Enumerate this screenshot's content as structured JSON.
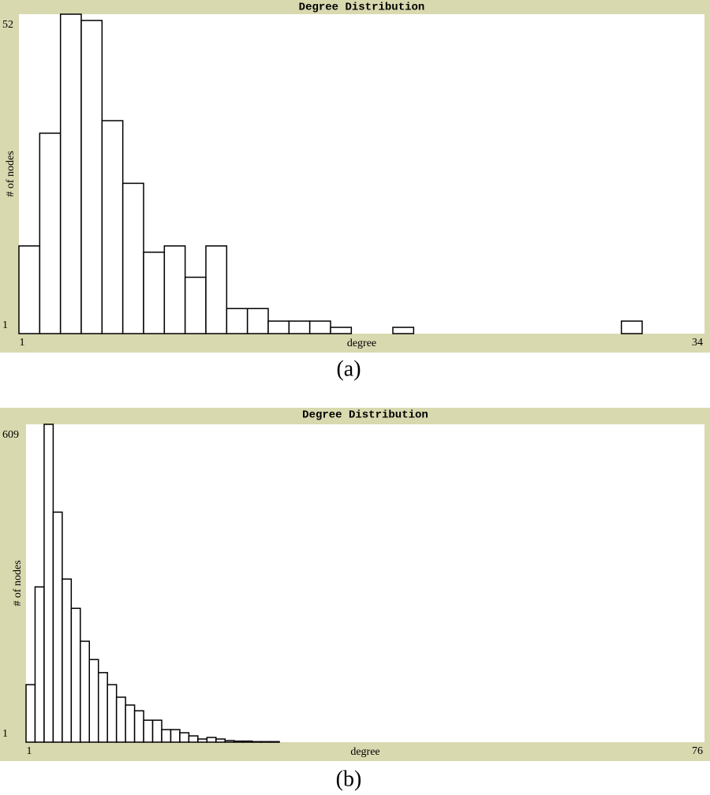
{
  "chart_data": [
    {
      "type": "histogram",
      "title": "Degree Distribution",
      "x_label": "degree",
      "y_label": "# of nodes",
      "caption": "(a)",
      "bins": [
        1,
        2,
        3,
        4,
        5,
        6,
        7,
        8,
        9,
        10,
        11,
        12,
        13,
        14,
        15,
        16,
        17,
        18,
        19,
        20,
        21,
        22,
        23,
        24,
        25,
        26,
        27,
        28,
        29,
        30,
        31,
        32,
        33,
        34
      ],
      "values": [
        15,
        33,
        52,
        51,
        35,
        25,
        14,
        15,
        10,
        15,
        5,
        5,
        3,
        3,
        3,
        2,
        0,
        0,
        2,
        0,
        0,
        1,
        0,
        1,
        1,
        0,
        0,
        0,
        0,
        3,
        0,
        0,
        1
      ],
      "xlim": [
        1,
        34
      ],
      "xticks": [
        1,
        34
      ],
      "ylim": [
        1,
        52
      ],
      "yticks": [
        1,
        52
      ],
      "color": "#ffffff"
    },
    {
      "type": "histogram",
      "title": "Degree Distribution",
      "x_label": "degree",
      "y_label": "# of nodes",
      "caption": "(b)",
      "bins": [
        1,
        2,
        3,
        4,
        5,
        6,
        7,
        8,
        9,
        10,
        11,
        12,
        13,
        14,
        15,
        16,
        17,
        18,
        19,
        20,
        21,
        22,
        23,
        24,
        25,
        26,
        27,
        28,
        29,
        30,
        31,
        32,
        33,
        34,
        35,
        36,
        37,
        38,
        39,
        40,
        41,
        42,
        43,
        44,
        45,
        46,
        47,
        48,
        49,
        50,
        51,
        52,
        53,
        54,
        55,
        56,
        57,
        58,
        59,
        60,
        61,
        62,
        63,
        64,
        65,
        66,
        67,
        68,
        69,
        70,
        71,
        72,
        73,
        74,
        75,
        76
      ],
      "values": [
        111,
        298,
        609,
        441,
        313,
        257,
        194,
        159,
        134,
        111,
        87,
        72,
        61,
        43,
        43,
        25,
        25,
        19,
        13,
        7,
        10,
        7,
        4,
        3,
        3,
        2,
        2,
        2,
        0,
        0,
        0,
        0,
        0,
        0,
        1,
        0,
        0,
        0,
        0,
        0,
        1,
        0,
        0,
        0,
        1,
        0,
        0,
        0,
        0,
        0,
        1,
        1,
        0,
        0,
        1,
        0,
        0,
        0,
        0,
        0,
        1,
        0,
        0,
        0,
        0,
        0,
        0,
        0,
        0,
        0,
        0,
        0,
        0,
        0,
        1
      ],
      "xlim": [
        1,
        76
      ],
      "xticks": [
        1,
        76
      ],
      "ylim": [
        1,
        609
      ],
      "yticks": [
        1,
        609
      ],
      "color": "#ffffff"
    }
  ]
}
